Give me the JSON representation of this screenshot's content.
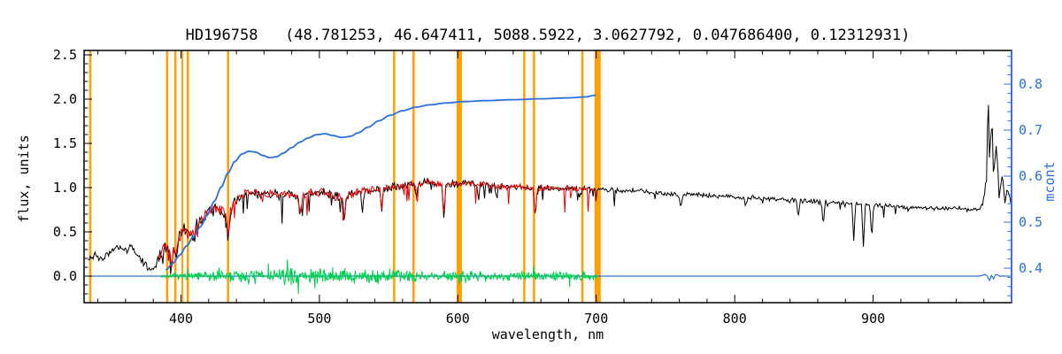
{
  "chart_data": {
    "type": "line",
    "title": "HD196758   (48.781253, 46.647411, 5088.5922, 3.0627792, 0.047686400, 0.12312931)",
    "xlabel": "wavelength, nm",
    "ylabel_left": "flux, units",
    "ylabel_right": "mcont",
    "xlim": [
      330,
      1000
    ],
    "ylim_left": [
      -0.3,
      2.55
    ],
    "ylim_right": [
      0.325,
      0.873
    ],
    "xticks": [
      400,
      500,
      600,
      700,
      800,
      900
    ],
    "xtick_minor": 20,
    "yticks_left": [
      0.0,
      0.5,
      1.0,
      1.5,
      2.0,
      2.5
    ],
    "ytick_minor_left": 0.1,
    "yticks_right": [
      0.4,
      0.5,
      0.6,
      0.7,
      0.8
    ],
    "ytick_minor_right": 0.02,
    "grid": false,
    "legend": "none",
    "axis_color_right": "#2a70dd",
    "mask_lines": {
      "color": "#ffa000",
      "lines": [
        {
          "nm": 334.5,
          "w": 2.5
        },
        {
          "nm": 390,
          "w": 2.5
        },
        {
          "nm": 396,
          "w": 2.5
        },
        {
          "nm": 401,
          "w": 2
        },
        {
          "nm": 405,
          "w": 2.5
        },
        {
          "nm": 434,
          "w": 2.5
        },
        {
          "nm": 554,
          "w": 2.5
        },
        {
          "nm": 568,
          "w": 2.5
        },
        {
          "nm": 601,
          "w": 6
        },
        {
          "nm": 648,
          "w": 2.5
        },
        {
          "nm": 655,
          "w": 2.5
        },
        {
          "nm": 690,
          "w": 2.5
        },
        {
          "nm": 701,
          "w": 7
        }
      ]
    },
    "series": [
      {
        "id": "zero",
        "name": "residual-baseline",
        "axis": "left",
        "color": "#2a70dd",
        "width": 1.2,
        "range": [
          333,
          1000
        ],
        "step": 1.5,
        "base": 0,
        "seed": 11,
        "amp_profile": [
          [
            333,
            0
          ],
          [
            977,
            0
          ],
          [
            980,
            0.03
          ],
          [
            986,
            0.045
          ],
          [
            991,
            0.02
          ],
          [
            994,
            0
          ],
          [
            1000,
            0
          ]
        ]
      },
      {
        "id": "residuals",
        "name": "fit-residuals",
        "axis": "left",
        "color": "#00d050",
        "width": 1,
        "range": [
          386,
          700
        ],
        "step": 0.4,
        "base": 0,
        "seed": 7,
        "amp_profile": [
          [
            386,
            0.015
          ],
          [
            400,
            0.028
          ],
          [
            420,
            0.042
          ],
          [
            440,
            0.058
          ],
          [
            470,
            0.065
          ],
          [
            500,
            0.07
          ],
          [
            530,
            0.062
          ],
          [
            560,
            0.052
          ],
          [
            590,
            0.045
          ],
          [
            620,
            0.04
          ],
          [
            660,
            0.038
          ],
          [
            700,
            0.034
          ]
        ],
        "spike_p": 0.07,
        "spike_mult": 2.3
      },
      {
        "id": "observed",
        "name": "observed-spectrum",
        "axis": "left",
        "color": "#000000",
        "width": 1,
        "range": [
          333,
          1000
        ],
        "step": 0.7,
        "seed": 3,
        "anchors": [
          [
            333,
            0.2
          ],
          [
            338,
            0.24
          ],
          [
            342,
            0.18
          ],
          [
            347,
            0.25
          ],
          [
            352,
            0.29
          ],
          [
            356,
            0.33
          ],
          [
            360,
            0.28
          ],
          [
            364,
            0.31
          ],
          [
            368,
            0.25
          ],
          [
            372,
            0.18
          ],
          [
            375,
            0.12
          ],
          [
            378,
            0.06
          ],
          [
            381,
            0.1
          ],
          [
            384,
            0.22
          ],
          [
            387,
            0.3
          ],
          [
            390,
            0.32
          ],
          [
            393,
            0.24
          ],
          [
            396,
            0.32
          ],
          [
            399,
            0.45
          ],
          [
            402,
            0.52
          ],
          [
            405,
            0.5
          ],
          [
            408,
            0.44
          ],
          [
            411,
            0.55
          ],
          [
            415,
            0.65
          ],
          [
            420,
            0.72
          ],
          [
            425,
            0.78
          ],
          [
            430,
            0.74
          ],
          [
            434,
            0.64
          ],
          [
            438,
            0.82
          ],
          [
            443,
            0.9
          ],
          [
            450,
            0.94
          ],
          [
            458,
            0.92
          ],
          [
            465,
            0.94
          ],
          [
            472,
            0.92
          ],
          [
            480,
            0.93
          ],
          [
            486,
            0.86
          ],
          [
            492,
            0.94
          ],
          [
            500,
            0.95
          ],
          [
            508,
            0.92
          ],
          [
            517,
            0.88
          ],
          [
            524,
            0.93
          ],
          [
            532,
            0.96
          ],
          [
            540,
            0.99
          ],
          [
            550,
            1.0
          ],
          [
            560,
            1.02
          ],
          [
            570,
            1.04
          ],
          [
            580,
            1.06
          ],
          [
            589,
            1.03
          ],
          [
            595,
            1.05
          ],
          [
            605,
            1.05
          ],
          [
            615,
            1.04
          ],
          [
            625,
            1.02
          ],
          [
            635,
            1.01
          ],
          [
            645,
            1.01
          ],
          [
            656,
            0.97
          ],
          [
            662,
            1.0
          ],
          [
            670,
            0.99
          ],
          [
            680,
            1.0
          ],
          [
            690,
            0.99
          ],
          [
            700,
            0.98
          ],
          [
            715,
            0.97
          ],
          [
            730,
            0.96
          ],
          [
            745,
            0.94
          ],
          [
            760,
            0.92
          ],
          [
            775,
            0.92
          ],
          [
            790,
            0.9
          ],
          [
            805,
            0.89
          ],
          [
            820,
            0.88
          ],
          [
            835,
            0.86
          ],
          [
            850,
            0.85
          ],
          [
            862,
            0.84
          ],
          [
            875,
            0.83
          ],
          [
            886,
            0.82
          ],
          [
            895,
            0.81
          ],
          [
            905,
            0.8
          ],
          [
            915,
            0.79
          ],
          [
            925,
            0.78
          ],
          [
            935,
            0.77
          ],
          [
            945,
            0.77
          ],
          [
            955,
            0.76
          ],
          [
            965,
            0.76
          ],
          [
            972,
            0.75
          ],
          [
            977,
            0.76
          ],
          [
            980,
            0.85
          ],
          [
            982,
            1.1
          ],
          [
            983,
            2.2
          ],
          [
            984,
            1.25
          ],
          [
            986,
            1.8
          ],
          [
            987,
            1.05
          ],
          [
            989,
            1.5
          ],
          [
            991,
            0.92
          ],
          [
            993,
            1.18
          ],
          [
            995,
            0.86
          ],
          [
            997,
            0.98
          ],
          [
            1000,
            0.82
          ]
        ],
        "amp_profile": [
          [
            333,
            0.03
          ],
          [
            375,
            0.035
          ],
          [
            382,
            0.05
          ],
          [
            395,
            0.06
          ],
          [
            420,
            0.055
          ],
          [
            450,
            0.045
          ],
          [
            520,
            0.04
          ],
          [
            560,
            0.034
          ],
          [
            620,
            0.03
          ],
          [
            700,
            0.022
          ],
          [
            780,
            0.018
          ],
          [
            860,
            0.02
          ],
          [
            930,
            0.018
          ],
          [
            976,
            0.02
          ],
          [
            982,
            0.1
          ],
          [
            992,
            0.07
          ],
          [
            1000,
            0.03
          ]
        ],
        "dip_regions": [
          {
            "range": [
              382,
              700
            ],
            "p": 0.05,
            "d": 0.32
          },
          {
            "range": [
              700,
              935
            ],
            "p": 0.02,
            "d": 0.2
          }
        ],
        "dips": [
          [
            393.4,
            0.18
          ],
          [
            397,
            0.15
          ],
          [
            410,
            0.12
          ],
          [
            434,
            0.22
          ],
          [
            486,
            0.2
          ],
          [
            518,
            0.3
          ],
          [
            531,
            0.22
          ],
          [
            545,
            0.28
          ],
          [
            570,
            0.2
          ],
          [
            590,
            0.42
          ],
          [
            615,
            0.18
          ],
          [
            628,
            0.15
          ],
          [
            656,
            0.33
          ],
          [
            688,
            0.12
          ],
          [
            761,
            0.16
          ],
          [
            808,
            0.12
          ],
          [
            846,
            0.2
          ],
          [
            864,
            0.28
          ],
          [
            886,
            0.42
          ],
          [
            893,
            0.5
          ],
          [
            899,
            0.38
          ]
        ]
      },
      {
        "id": "fit",
        "name": "model-fit-spectrum",
        "axis": "left",
        "color": "#ee0000",
        "width": 1,
        "range": [
          384,
          700
        ],
        "step": 0.7,
        "seed": 4,
        "anchors_ref": "observed",
        "amp_profile": [
          [
            384,
            0.05
          ],
          [
            395,
            0.055
          ],
          [
            420,
            0.05
          ],
          [
            450,
            0.04
          ],
          [
            520,
            0.036
          ],
          [
            560,
            0.03
          ],
          [
            620,
            0.026
          ],
          [
            700,
            0.02
          ]
        ],
        "dip_regions": [
          {
            "range": [
              386,
              700
            ],
            "p": 0.05,
            "d": 0.3
          }
        ],
        "dips": [
          [
            393.4,
            0.15
          ],
          [
            397,
            0.12
          ],
          [
            434,
            0.2
          ],
          [
            486,
            0.18
          ],
          [
            518,
            0.28
          ],
          [
            545,
            0.24
          ],
          [
            590,
            0.38
          ],
          [
            656,
            0.3
          ]
        ]
      },
      {
        "id": "continuum",
        "name": "continuum-mcont",
        "axis": "right",
        "color": "#2a70dd",
        "width": 1.8,
        "range": [
          389,
          700
        ],
        "step": 1.2,
        "smooth": true,
        "seed": 1,
        "anchors": [
          [
            389,
            0.396
          ],
          [
            394,
            0.41
          ],
          [
            399,
            0.428
          ],
          [
            404,
            0.448
          ],
          [
            409,
            0.468
          ],
          [
            414,
            0.49
          ],
          [
            419,
            0.515
          ],
          [
            424,
            0.545
          ],
          [
            429,
            0.576
          ],
          [
            434,
            0.607
          ],
          [
            439,
            0.632
          ],
          [
            444,
            0.648
          ],
          [
            449,
            0.654
          ],
          [
            454,
            0.652
          ],
          [
            459,
            0.645
          ],
          [
            464,
            0.64
          ],
          [
            469,
            0.642
          ],
          [
            474,
            0.65
          ],
          [
            480,
            0.662
          ],
          [
            486,
            0.674
          ],
          [
            492,
            0.683
          ],
          [
            498,
            0.69
          ],
          [
            504,
            0.692
          ],
          [
            510,
            0.688
          ],
          [
            516,
            0.684
          ],
          [
            522,
            0.686
          ],
          [
            528,
            0.694
          ],
          [
            535,
            0.706
          ],
          [
            543,
            0.72
          ],
          [
            551,
            0.732
          ],
          [
            560,
            0.742
          ],
          [
            570,
            0.75
          ],
          [
            580,
            0.755
          ],
          [
            592,
            0.759
          ],
          [
            605,
            0.762
          ],
          [
            620,
            0.764
          ],
          [
            640,
            0.766
          ],
          [
            660,
            0.768
          ],
          [
            680,
            0.77
          ],
          [
            692,
            0.772
          ],
          [
            700,
            0.776
          ]
        ]
      }
    ]
  }
}
